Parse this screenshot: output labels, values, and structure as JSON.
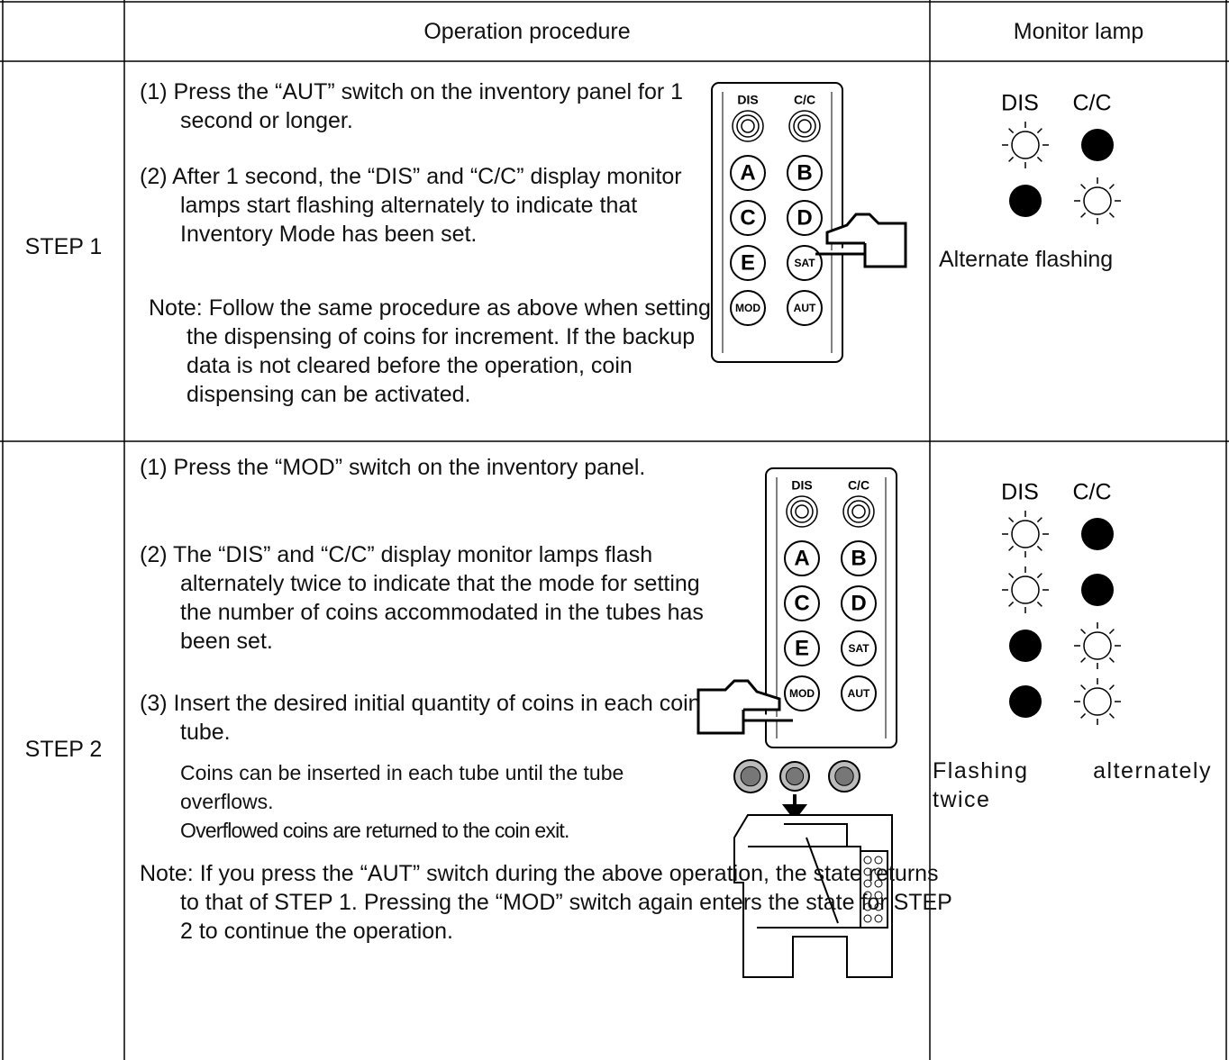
{
  "header": {
    "procedure": "Operation procedure",
    "monitor": "Monitor lamp"
  },
  "panel": {
    "lamps": [
      "DIS",
      "C/C"
    ],
    "buttons": [
      "A",
      "B",
      "C",
      "D",
      "E",
      "SAT",
      "MOD",
      "AUT"
    ]
  },
  "steps": [
    {
      "label": "STEP 1",
      "items": [
        "(1) Press the “AUT” switch on the inventory panel for 1 second or longer.",
        "(2) After 1 second, the “DIS” and “C/C” display monitor lamps start flashing alternately to indicate that Inventory Mode has been set.",
        "Note: Follow the same procedure as above when setting the dispensing of coins for increment. If the backup data is not cleared before the operation, coin dispensing can be activated."
      ],
      "monitor": "Alternate flashing"
    },
    {
      "label": "STEP 2",
      "items": [
        "(1) Press the “MOD” switch on the inventory panel.",
        "(2) The “DIS” and “C/C” display monitor lamps flash alternately twice to indicate that the mode for setting the number of coins accommodated in the tubes has been set.",
        "(3) Insert the desired initial quantity of coins in each coin tube.",
        "Coins can be inserted in each tube until the tube overflows.",
        "Overflowed coins are returned to the coin exit.",
        "Note: If you press the “AUT” switch during the above operation, the state returns to that of STEP 1. Pressing the “MOD” switch again enters the state for STEP 2 to continue the operation."
      ],
      "monitor": "Flashing alternately twice"
    }
  ]
}
